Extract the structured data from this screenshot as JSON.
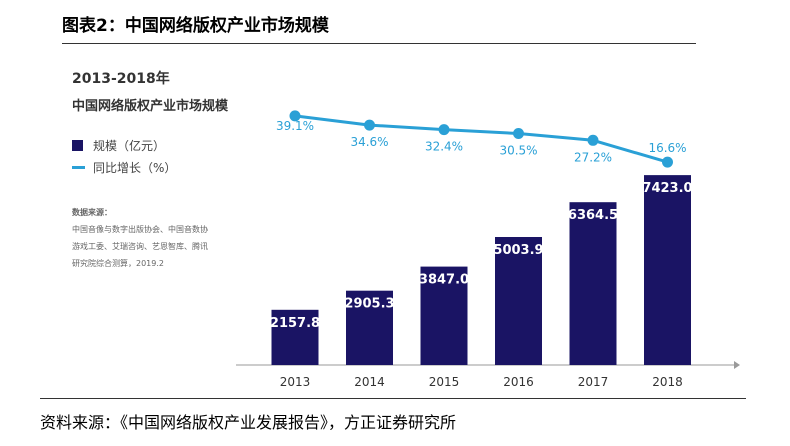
{
  "figure": {
    "title": "图表2：中国网络版权产业市场规模",
    "source": "资料来源：《中国网络版权产业发展报告》，方正证券研究所"
  },
  "chart_panel": {
    "year_range": "2013-2018年",
    "title": "中国网络版权产业市场规模",
    "data_source_heading": "数据来源：",
    "data_source_lines": [
      "中国音像与数字出版协会、中国音数协",
      "游戏工委、艾瑞咨询、艺恩智库、腾讯",
      "研究院综合测算，2019.2"
    ]
  },
  "chart_data": {
    "type": "bar",
    "categories": [
      "2013",
      "2014",
      "2015",
      "2016",
      "2017",
      "2018"
    ],
    "series": [
      {
        "name": "规模（亿元）",
        "type": "bar",
        "values": [
          2157.8,
          2905.3,
          3847.0,
          5003.9,
          6364.5,
          7423.0
        ],
        "color": "#1a1464",
        "labels": [
          "2157.8",
          "2905.3",
          "3847.0",
          "5003.9",
          "6364.5",
          "7423.0"
        ]
      },
      {
        "name": "同比增长（%）",
        "type": "line",
        "values": [
          39.1,
          34.6,
          32.4,
          30.5,
          27.2,
          16.6
        ],
        "color": "#2aa0d6",
        "labels": [
          "39.1%",
          "34.6%",
          "32.4%",
          "30.5%",
          "27.2%",
          "16.6%"
        ]
      }
    ],
    "legend_position": "left",
    "grid": false
  }
}
